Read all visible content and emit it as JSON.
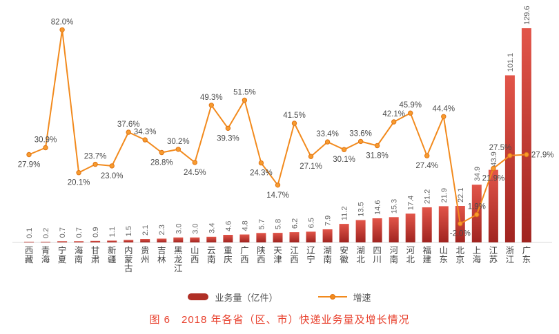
{
  "chart_data": {
    "type": "bar+line",
    "title": "图 6　2018 年各省（区、市）快递业务量及增长情况",
    "categories": [
      "西藏",
      "青海",
      "宁夏",
      "海南",
      "甘肃",
      "新疆",
      "内蒙古",
      "贵州",
      "吉林",
      "黑龙江",
      "山西",
      "云南",
      "重庆",
      "广西",
      "陕西",
      "天津",
      "江西",
      "辽宁",
      "湖南",
      "安徽",
      "湖北",
      "四川",
      "河南",
      "河北",
      "福建",
      "山东",
      "北京",
      "上海",
      "江苏",
      "浙江",
      "广东"
    ],
    "series": [
      {
        "name": "业务量（亿件）",
        "type": "bar",
        "values": [
          0.1,
          0.2,
          0.7,
          0.7,
          0.9,
          1.1,
          1.5,
          2.1,
          2.3,
          3.0,
          3.0,
          3.4,
          4.6,
          4.8,
          5.7,
          5.8,
          6.2,
          6.5,
          7.9,
          11.2,
          13.5,
          14.6,
          15.3,
          17.4,
          21.2,
          21.9,
          22.1,
          34.9,
          43.9,
          101.1,
          129.6
        ],
        "labels": [
          "0.1",
          "0.2",
          "0.7",
          "0.7",
          "0.9",
          "1.1",
          "1.5",
          "2.1",
          "2.3",
          "3.0",
          "3.0",
          "3.4",
          "4.6",
          "4.8",
          "5.7",
          "5.8",
          "6.2",
          "6.5",
          "7.9",
          "11.2",
          "13.5",
          "14.6",
          "15.3",
          "17.4",
          "21.2",
          "21.9",
          "22.1",
          "34.9",
          "43.9",
          "101.1",
          "129.6"
        ]
      },
      {
        "name": "增速",
        "type": "line",
        "values": [
          27.9,
          30.9,
          82.0,
          20.1,
          23.7,
          23.0,
          37.6,
          34.3,
          28.8,
          30.2,
          24.5,
          49.3,
          39.3,
          51.5,
          24.3,
          14.7,
          41.5,
          27.1,
          33.4,
          30.1,
          33.6,
          31.8,
          42.1,
          45.9,
          27.4,
          44.4,
          -2.0,
          1.9,
          21.9,
          27.5,
          27.9
        ],
        "labels": [
          "27.9%",
          "30.9%",
          "82.0%",
          "20.1%",
          "23.7%",
          "23.0%",
          "37.6%",
          "34.3%",
          "28.8%",
          "30.2%",
          "24.5%",
          "49.3%",
          "39.3%",
          "51.5%",
          "24.3%",
          "14.7%",
          "41.5%",
          "27.1%",
          "33.4%",
          "30.1%",
          "33.6%",
          "31.8%",
          "42.1%",
          "45.9%",
          "27.4%",
          "44.4%",
          "-2.0%",
          "1.9%",
          "21.9%",
          "27.5%",
          "27.9%"
        ],
        "label_positions": [
          "below",
          "above",
          "above",
          "below",
          "above",
          "below",
          "above",
          "above",
          "below",
          "above",
          "below",
          "above",
          "below",
          "above",
          "below",
          "below",
          "above",
          "below",
          "above",
          "below",
          "above",
          "below",
          "above",
          "above",
          "below",
          "above",
          "below",
          "above",
          "below",
          "above-left",
          "right"
        ]
      }
    ],
    "legend": [
      {
        "label": "业务量（亿件）",
        "type": "bar"
      },
      {
        "label": "增速",
        "type": "line"
      }
    ],
    "caption": "图 6　2018 年各省（区、市）快递业务量及增长情况",
    "legend_position": "bottom",
    "grid": false,
    "ylim_bar": [
      0,
      135
    ],
    "ylim_growth": [
      -10,
      90
    ],
    "colors": {
      "bar_top": "#e25549",
      "bar_bottom": "#a02420",
      "legend_bar": "#b02f26",
      "line": "#f28a1d",
      "marker": "#f79b2e",
      "marker_stroke": "#e07414",
      "growth_label": "#4a4a4a",
      "bar_label": "#666666",
      "axis_label": "#404040",
      "baseline": "#d9d9d9",
      "caption": "#e8402d"
    }
  }
}
